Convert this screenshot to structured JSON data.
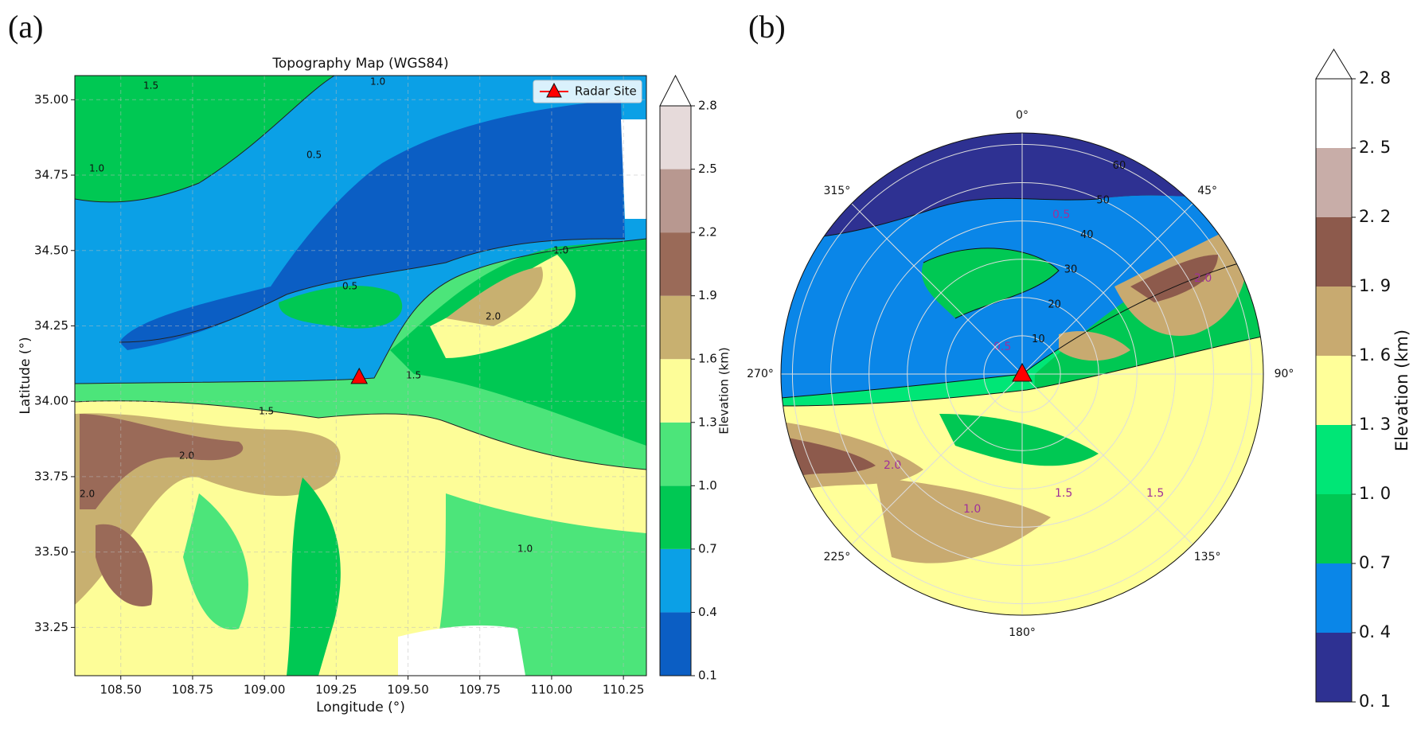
{
  "chart_data": [
    {
      "type": "contour",
      "panel_label": "(a)",
      "title": "Topography Map (WGS84)",
      "xlabel": "Longitude (°)",
      "ylabel": "Latitude (°)",
      "xlim": [
        108.34,
        110.33
      ],
      "ylim": [
        33.09,
        35.08
      ],
      "xticks": [
        {
          "value": 108.5,
          "label": "108.50"
        },
        {
          "value": 108.75,
          "label": "108.75"
        },
        {
          "value": 109,
          "label": "109.00"
        },
        {
          "value": 109.25,
          "label": "109.25"
        },
        {
          "value": 109.5,
          "label": "109.50"
        },
        {
          "value": 109.75,
          "label": "109.75"
        },
        {
          "value": 110,
          "label": "110.00"
        },
        {
          "value": 110.25,
          "label": "110.25"
        }
      ],
      "yticks": [
        {
          "value": 33.25,
          "label": "33.25"
        },
        {
          "value": 33.5,
          "label": "33.50"
        },
        {
          "value": 33.75,
          "label": "33.75"
        },
        {
          "value": 34,
          "label": "34.00"
        },
        {
          "value": 34.25,
          "label": "34.25"
        },
        {
          "value": 34.5,
          "label": "34.50"
        },
        {
          "value": 34.75,
          "label": "34.75"
        },
        {
          "value": 35,
          "label": "35.00"
        }
      ],
      "grid": true,
      "contour_levels": [
        0.5,
        {
          "value": 1,
          "label": "1.0"
        },
        1.5,
        {
          "value": 2,
          "label": "2.0"
        }
      ],
      "series": [
        {
          "name": "Radar Site",
          "color": "#ff0000",
          "x": [
            109.33
          ],
          "y": [
            34.08
          ]
        }
      ],
      "legend": "upper right",
      "colorbar": {
        "label": "Elevation (km)",
        "extend": "max",
        "levels": [
          0.1,
          0.4,
          0.7,
          {
            "value": 1,
            "label": "1.0"
          },
          1.3,
          1.6,
          1.9,
          2.2,
          2.5,
          2.8
        ],
        "colors": [
          "#0b5ec4",
          "#0ba0e6",
          "#00c853",
          "#4ce57a",
          "#fdfd98",
          "#c8b070",
          "#9a6a58",
          "#b89890",
          "#e6dada"
        ]
      }
    },
    {
      "type": "polar-contour",
      "panel_label": "(b)",
      "rlim": [
        0,
        63
      ],
      "rticks": [
        10,
        20,
        30,
        40,
        50,
        60
      ],
      "thetaticks": [
        {
          "value": 0,
          "label": "0°"
        },
        {
          "value": 45,
          "label": "45°"
        },
        {
          "value": 90,
          "label": "90°"
        },
        {
          "value": 135,
          "label": "135°"
        },
        {
          "value": 180,
          "label": "180°"
        },
        {
          "value": 225,
          "label": "225°"
        },
        {
          "value": 270,
          "label": "270°"
        },
        {
          "value": 315,
          "label": "315°"
        }
      ],
      "contour_levels": [
        0.5,
        {
          "value": 1,
          "label": "1.0"
        },
        1.5,
        {
          "value": 2,
          "label": "2.0"
        }
      ],
      "site": {
        "r": 0,
        "color": "#ff0000"
      },
      "colorbar": {
        "label": "Elevation (km)",
        "extend": "max",
        "levels": [
          {
            "value": 0.1,
            "label": "0. 1"
          },
          {
            "value": 0.4,
            "label": "0. 4"
          },
          {
            "value": 0.7,
            "label": "0. 7"
          },
          {
            "value": 1,
            "label": "1. 0"
          },
          {
            "value": 1.3,
            "label": "1. 3"
          },
          {
            "value": 1.6,
            "label": "1. 6"
          },
          {
            "value": 1.9,
            "label": "1. 9"
          },
          {
            "value": 2.2,
            "label": "2. 2"
          },
          {
            "value": 2.5,
            "label": "2. 5"
          },
          {
            "value": 2.8,
            "label": "2. 8"
          }
        ],
        "colors": [
          "#2e3192",
          "#0a86e8",
          "#00c853",
          "#00e676",
          "#ffff99",
          "#c8aa70",
          "#8d5a4c",
          "#c8ada8",
          "#ffffff"
        ]
      }
    }
  ]
}
